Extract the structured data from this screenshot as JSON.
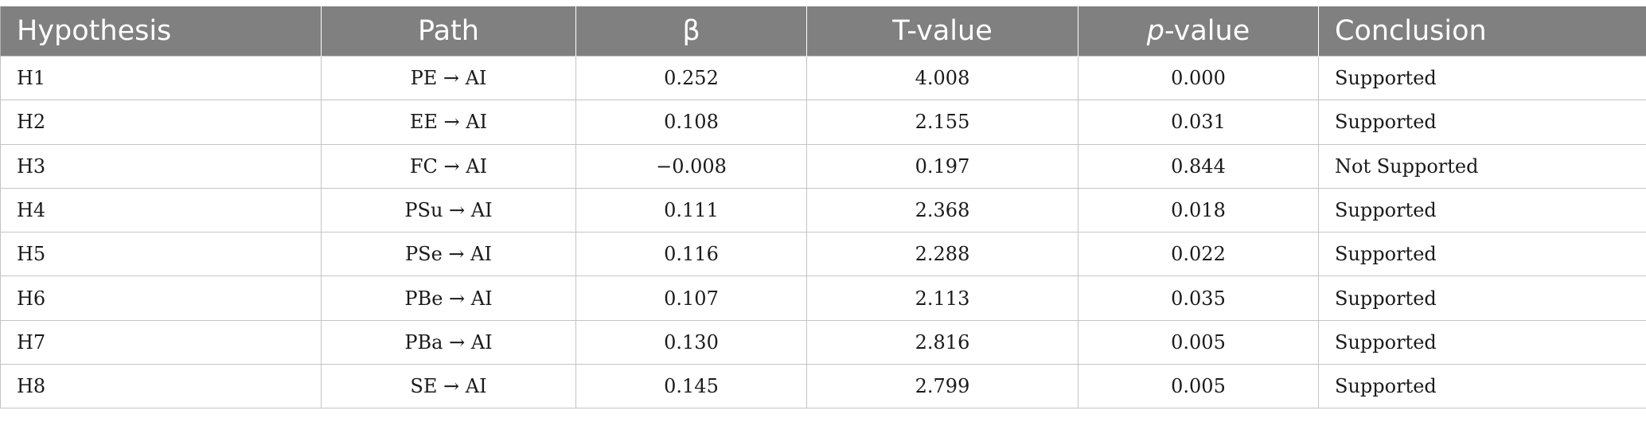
{
  "table": {
    "headers": {
      "hypothesis": "Hypothesis",
      "path": "Path",
      "beta": "β",
      "t_value": "T-value",
      "p_value_italic": "p",
      "p_value_rest": "-value",
      "conclusion": "Conclusion"
    },
    "rows": [
      {
        "hypothesis": "H1",
        "path": "PE → AI",
        "beta": "0.252",
        "t": "4.008",
        "p": "0.000",
        "conclusion": "Supported"
      },
      {
        "hypothesis": "H2",
        "path": "EE → AI",
        "beta": "0.108",
        "t": "2.155",
        "p": "0.031",
        "conclusion": "Supported"
      },
      {
        "hypothesis": "H3",
        "path": "FC → AI",
        "beta": "−0.008",
        "t": "0.197",
        "p": "0.844",
        "conclusion": "Not Supported"
      },
      {
        "hypothesis": "H4",
        "path": "PSu → AI",
        "beta": "0.111",
        "t": "2.368",
        "p": "0.018",
        "conclusion": "Supported"
      },
      {
        "hypothesis": "H5",
        "path": "PSe → AI",
        "beta": "0.116",
        "t": "2.288",
        "p": "0.022",
        "conclusion": "Supported"
      },
      {
        "hypothesis": "H6",
        "path": "PBe → AI",
        "beta": "0.107",
        "t": "2.113",
        "p": "0.035",
        "conclusion": "Supported"
      },
      {
        "hypothesis": "H7",
        "path": "PBa → AI",
        "beta": "0.130",
        "t": "2.816",
        "p": "0.005",
        "conclusion": "Supported"
      },
      {
        "hypothesis": "H8",
        "path": "SE → AI",
        "beta": "0.145",
        "t": "2.799",
        "p": "0.005",
        "conclusion": "Supported"
      }
    ]
  }
}
